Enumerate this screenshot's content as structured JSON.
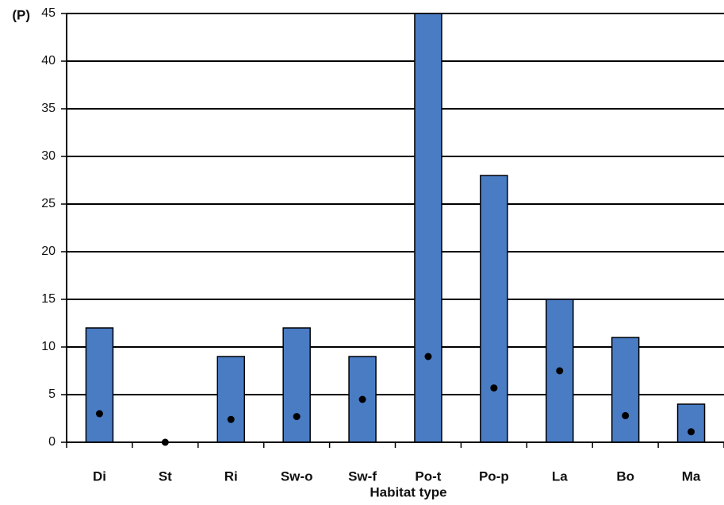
{
  "chart_data": {
    "type": "bar",
    "title": "",
    "xlabel": "Habitat type",
    "ylabel": "(P)",
    "ylim": [
      0,
      45
    ],
    "yticks": [
      0,
      5,
      10,
      15,
      20,
      25,
      30,
      35,
      40,
      45
    ],
    "grid": true,
    "categories": [
      "Di",
      "St",
      "Ri",
      "Sw-o",
      "Sw-f",
      "Po-t",
      "Po-p",
      "La",
      "Bo",
      "Ma"
    ],
    "series": [
      {
        "type": "bar",
        "color": "#4a7cc4",
        "values": [
          12,
          0,
          9,
          12,
          9,
          45,
          28,
          15,
          11,
          4
        ]
      },
      {
        "type": "point",
        "color": "#000000",
        "values": [
          3,
          0,
          2.4,
          2.7,
          4.5,
          9,
          5.7,
          7.5,
          2.8,
          1.1
        ]
      }
    ]
  }
}
